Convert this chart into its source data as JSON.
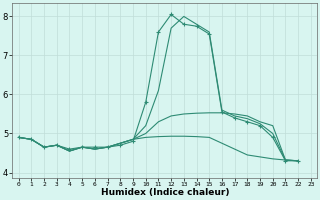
{
  "title": "",
  "xlabel": "Humidex (Indice chaleur)",
  "x_values": [
    0,
    1,
    2,
    3,
    4,
    5,
    6,
    7,
    8,
    9,
    10,
    11,
    12,
    13,
    14,
    15,
    16,
    17,
    18,
    19,
    20,
    21,
    22,
    23
  ],
  "lines": [
    {
      "y": [
        4.9,
        4.85,
        4.65,
        4.7,
        4.6,
        4.65,
        4.65,
        4.65,
        4.7,
        4.8,
        5.8,
        7.6,
        8.05,
        7.8,
        7.75,
        7.55,
        5.55,
        5.4,
        5.3,
        5.2,
        4.9,
        4.3,
        4.3,
        null
      ],
      "marker": true
    },
    {
      "y": [
        4.9,
        4.85,
        4.65,
        4.7,
        4.55,
        4.65,
        4.6,
        4.65,
        4.75,
        4.85,
        5.2,
        6.1,
        7.7,
        8.0,
        7.8,
        7.6,
        5.6,
        5.45,
        5.38,
        5.25,
        5.0,
        4.32,
        4.3,
        null
      ],
      "marker": false
    },
    {
      "y": [
        4.9,
        4.85,
        4.65,
        4.7,
        4.55,
        4.65,
        4.6,
        4.65,
        4.75,
        4.85,
        5.0,
        5.3,
        5.45,
        5.5,
        5.52,
        5.53,
        5.53,
        5.5,
        5.45,
        5.3,
        5.2,
        4.32,
        4.3,
        null
      ],
      "marker": false
    },
    {
      "y": [
        4.9,
        4.85,
        4.65,
        4.7,
        4.55,
        4.65,
        4.6,
        4.65,
        4.75,
        4.85,
        4.9,
        4.92,
        4.93,
        4.93,
        4.92,
        4.9,
        4.75,
        4.6,
        4.45,
        4.4,
        4.35,
        4.32,
        4.3,
        null
      ],
      "marker": false
    }
  ],
  "line_color": "#2E8B74",
  "background_color": "#D8F5F0",
  "grid_color": "#C0DDD8",
  "xlim": [
    -0.5,
    23.5
  ],
  "ylim": [
    3.85,
    8.35
  ],
  "yticks": [
    4,
    5,
    6,
    7,
    8
  ],
  "xticks": [
    0,
    1,
    2,
    3,
    4,
    5,
    6,
    7,
    8,
    9,
    10,
    11,
    12,
    13,
    14,
    15,
    16,
    17,
    18,
    19,
    20,
    21,
    22,
    23
  ],
  "tick_fontsize_x": 4.5,
  "tick_fontsize_y": 6.0,
  "xlabel_fontsize": 6.5,
  "linewidth": 0.8,
  "marker_size": 3.0
}
